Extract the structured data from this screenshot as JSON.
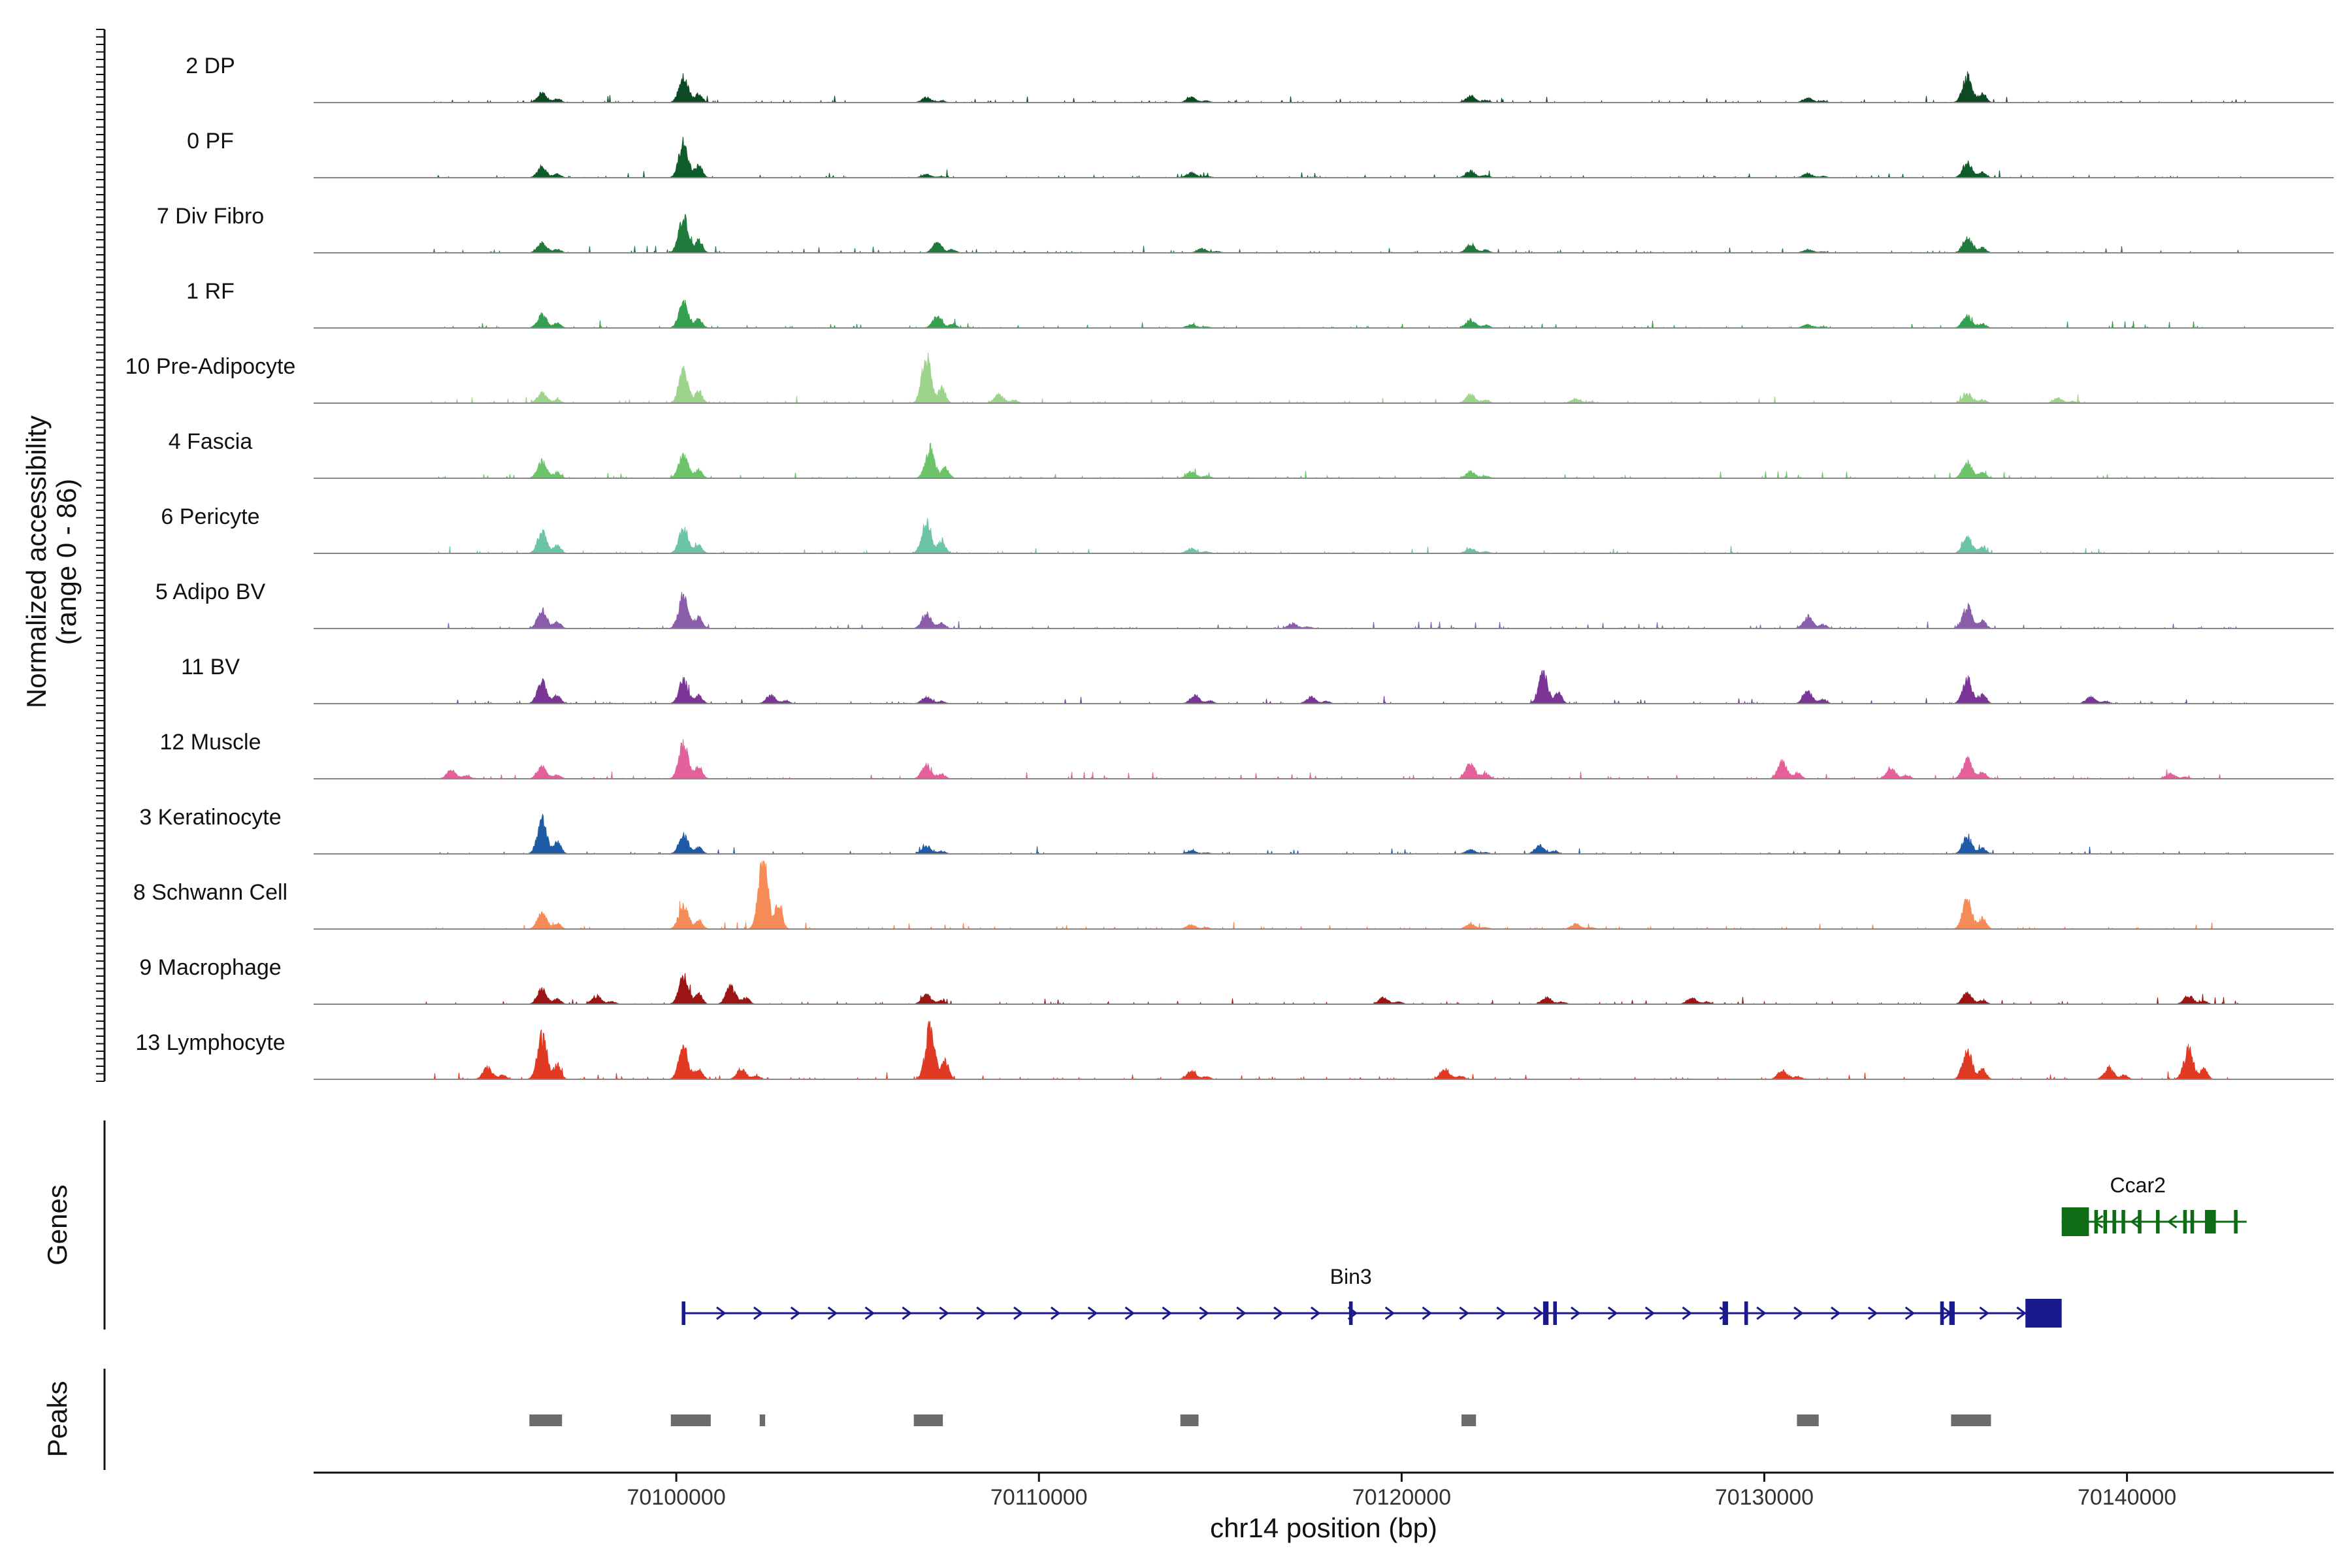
{
  "chart_data": {
    "type": "area",
    "title": "",
    "xlabel": "chr14 position (bp)",
    "ylabel_line1": "Normalized accessibility",
    "ylabel_line2": "(range 0 - 86)",
    "yrange": [
      0,
      86
    ],
    "xlim": [
      70090000,
      70145700
    ],
    "xticks": [
      70100000,
      70110000,
      70120000,
      70130000,
      70140000
    ],
    "xtick_labels": [
      "70100000",
      "70110000",
      "70120000",
      "70130000",
      "70140000"
    ],
    "peak_centers": [
      70096300,
      70100200,
      70102400,
      70106900,
      70114200,
      70121900,
      70131200,
      70135600
    ],
    "series": [
      {
        "name": "2 DP",
        "color": "#0b4a22",
        "peaks": [
          [
            70096300,
            12
          ],
          [
            70100200,
            30
          ],
          [
            70106900,
            6
          ],
          [
            70114200,
            6
          ],
          [
            70121900,
            8
          ],
          [
            70131200,
            6
          ],
          [
            70135600,
            32
          ]
        ]
      },
      {
        "name": "0 PF",
        "color": "#0e5c2a",
        "peaks": [
          [
            70096300,
            12
          ],
          [
            70100200,
            42
          ],
          [
            70106900,
            4
          ],
          [
            70114200,
            6
          ],
          [
            70121900,
            8
          ],
          [
            70131200,
            5
          ],
          [
            70135600,
            18
          ]
        ]
      },
      {
        "name": "7 Div Fibro",
        "color": "#1f7a3c",
        "peaks": [
          [
            70096300,
            12
          ],
          [
            70100200,
            45
          ],
          [
            70107200,
            12
          ],
          [
            70114500,
            5
          ],
          [
            70121900,
            10
          ],
          [
            70131200,
            4
          ],
          [
            70135600,
            18
          ]
        ]
      },
      {
        "name": "1 RF",
        "color": "#35a04f",
        "peaks": [
          [
            70096300,
            16
          ],
          [
            70100200,
            30
          ],
          [
            70107200,
            14
          ],
          [
            70114200,
            4
          ],
          [
            70121900,
            10
          ],
          [
            70131200,
            4
          ],
          [
            70135600,
            14
          ]
        ]
      },
      {
        "name": "10 Pre-Adipocyte",
        "color": "#9bd48a",
        "peaks": [
          [
            70096300,
            12
          ],
          [
            70100200,
            38
          ],
          [
            70106900,
            55
          ],
          [
            70108900,
            10
          ],
          [
            70121900,
            10
          ],
          [
            70124800,
            5
          ],
          [
            70135600,
            12
          ],
          [
            70138100,
            6
          ]
        ]
      },
      {
        "name": "4 Fascia",
        "color": "#6cc36a",
        "peaks": [
          [
            70096300,
            20
          ],
          [
            70100200,
            28
          ],
          [
            70107000,
            36
          ],
          [
            70114200,
            8
          ],
          [
            70121900,
            8
          ],
          [
            70135600,
            20
          ]
        ]
      },
      {
        "name": "6 Pericyte",
        "color": "#6cc4a6",
        "peaks": [
          [
            70096300,
            26
          ],
          [
            70100200,
            30
          ],
          [
            70106900,
            40
          ],
          [
            70114200,
            6
          ],
          [
            70121900,
            6
          ],
          [
            70135600,
            20
          ]
        ]
      },
      {
        "name": "5 Adipo BV",
        "color": "#8a5dab",
        "peaks": [
          [
            70096300,
            22
          ],
          [
            70100200,
            40
          ],
          [
            70106900,
            18
          ],
          [
            70117000,
            6
          ],
          [
            70131200,
            14
          ],
          [
            70135600,
            26
          ]
        ]
      },
      {
        "name": "11 BV",
        "color": "#7a3596",
        "peaks": [
          [
            70096300,
            28
          ],
          [
            70100200,
            28
          ],
          [
            70102600,
            10
          ],
          [
            70106900,
            8
          ],
          [
            70114300,
            10
          ],
          [
            70117500,
            8
          ],
          [
            70123900,
            36
          ],
          [
            70131200,
            14
          ],
          [
            70135600,
            30
          ],
          [
            70139000,
            8
          ]
        ]
      },
      {
        "name": "12 Muscle",
        "color": "#e3609a",
        "peaks": [
          [
            70093800,
            10
          ],
          [
            70096300,
            14
          ],
          [
            70100200,
            42
          ],
          [
            70106900,
            16
          ],
          [
            70121900,
            18
          ],
          [
            70130500,
            20
          ],
          [
            70133500,
            12
          ],
          [
            70135600,
            24
          ],
          [
            70141200,
            6
          ]
        ]
      },
      {
        "name": "3 Keratinocyte",
        "color": "#1f5aa6",
        "peaks": [
          [
            70096300,
            42
          ],
          [
            70100200,
            22
          ],
          [
            70106900,
            10
          ],
          [
            70114200,
            4
          ],
          [
            70121900,
            5
          ],
          [
            70123800,
            10
          ],
          [
            70135600,
            20
          ]
        ]
      },
      {
        "name": "8 Schwann Cell",
        "color": "#f58c58",
        "peaks": [
          [
            70096300,
            20
          ],
          [
            70100200,
            30
          ],
          [
            70102400,
            86
          ],
          [
            70114200,
            5
          ],
          [
            70121900,
            6
          ],
          [
            70124800,
            6
          ],
          [
            70135600,
            36
          ]
        ]
      },
      {
        "name": "9 Macrophage",
        "color": "#9c1414",
        "peaks": [
          [
            70096300,
            18
          ],
          [
            70097800,
            10
          ],
          [
            70100200,
            34
          ],
          [
            70101500,
            22
          ],
          [
            70106900,
            12
          ],
          [
            70119500,
            8
          ],
          [
            70124000,
            8
          ],
          [
            70128000,
            8
          ],
          [
            70135600,
            14
          ],
          [
            70141700,
            10
          ]
        ]
      },
      {
        "name": "13 Lymphocyte",
        "color": "#e03a25",
        "peaks": [
          [
            70094800,
            14
          ],
          [
            70096300,
            52
          ],
          [
            70100200,
            38
          ],
          [
            70101800,
            12
          ],
          [
            70107000,
            62
          ],
          [
            70114200,
            10
          ],
          [
            70121200,
            12
          ],
          [
            70130500,
            10
          ],
          [
            70135600,
            36
          ],
          [
            70139500,
            14
          ],
          [
            70141700,
            36
          ]
        ]
      }
    ],
    "genes": [
      {
        "name": "Bin3",
        "start": 70100200,
        "end": 70138100,
        "strand": "+",
        "color": "#1a1a8c",
        "exons": [
          [
            70100150,
            70100250
          ],
          [
            70118550,
            70118650
          ],
          [
            70123900,
            70124050
          ],
          [
            70124180,
            70124280
          ],
          [
            70128850,
            70129000
          ],
          [
            70129450,
            70129550
          ],
          [
            70134850,
            70134950
          ],
          [
            70135100,
            70135250
          ],
          [
            70137200,
            70138200
          ]
        ]
      },
      {
        "name": "Ccar2",
        "start": 70138200,
        "end": 70143300,
        "strand": "-",
        "color": "#0f6b14",
        "exons": [
          [
            70138200,
            70138950
          ],
          [
            70139100,
            70139200
          ],
          [
            70139350,
            70139450
          ],
          [
            70139600,
            70139700
          ],
          [
            70139850,
            70139950
          ],
          [
            70140300,
            70140400
          ],
          [
            70140800,
            70140900
          ],
          [
            70141550,
            70141650
          ],
          [
            70141750,
            70141850
          ],
          [
            70142150,
            70142450
          ],
          [
            70142950,
            70143050
          ]
        ]
      }
    ],
    "genes_title": "Genes",
    "peaks_title": "Peaks",
    "peak_regions": [
      [
        70095950,
        70096850
      ],
      [
        70099850,
        70100950
      ],
      [
        70102300,
        70102450
      ],
      [
        70106550,
        70107350
      ],
      [
        70113900,
        70114400
      ],
      [
        70121650,
        70122050
      ],
      [
        70130900,
        70131500
      ],
      [
        70135150,
        70136250
      ]
    ]
  }
}
